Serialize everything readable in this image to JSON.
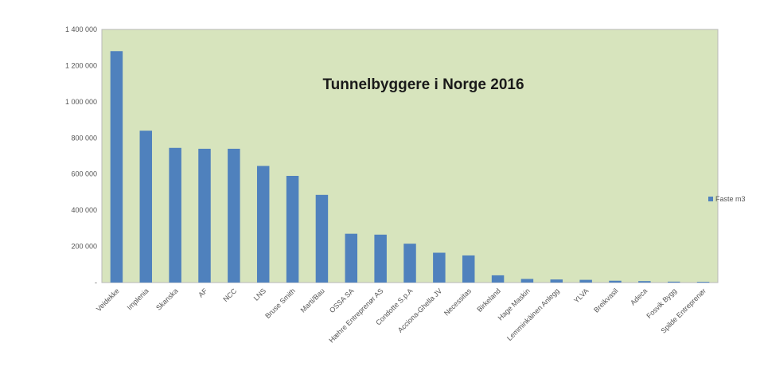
{
  "chart_data": {
    "type": "bar",
    "title": "Tunnelbyggere i Norge 2016",
    "xlabel": "",
    "ylabel": "",
    "ylim": [
      0,
      1400000
    ],
    "yticks": [
      0,
      200000,
      400000,
      600000,
      800000,
      1000000,
      1200000,
      1400000
    ],
    "ytick_labels": [
      "-",
      "200 000",
      "400 000",
      "600 000",
      "800 000",
      "1 000 000",
      "1 200 000",
      "1 400 000"
    ],
    "grid": false,
    "legend_position": "right",
    "colors": {
      "plot_background": "#d7e4bd",
      "bar": "#4f81bd"
    },
    "categories": [
      "Veidekke",
      "Implenia",
      "Skanska",
      "AF",
      "NCC",
      "LNS",
      "Bruse Smith",
      "Marti/Bau",
      "OSSA SA",
      "Hæhre Entreprenør AS",
      "Condotte S.p.A",
      "Acciona-Ghella JV",
      "Necessitas",
      "Birkeland",
      "Hage Maskin",
      "Lemminkäinen Anlegg",
      "YLVA",
      "Breikvasil",
      "Adeca",
      "Fosvik Bygg",
      "Spilde Entreprenør"
    ],
    "series": [
      {
        "name": "Faste m3",
        "values": [
          1280000,
          840000,
          745000,
          740000,
          740000,
          645000,
          590000,
          485000,
          270000,
          265000,
          215000,
          165000,
          150000,
          40000,
          20000,
          17000,
          15000,
          10000,
          8000,
          5000,
          4000
        ]
      }
    ]
  }
}
